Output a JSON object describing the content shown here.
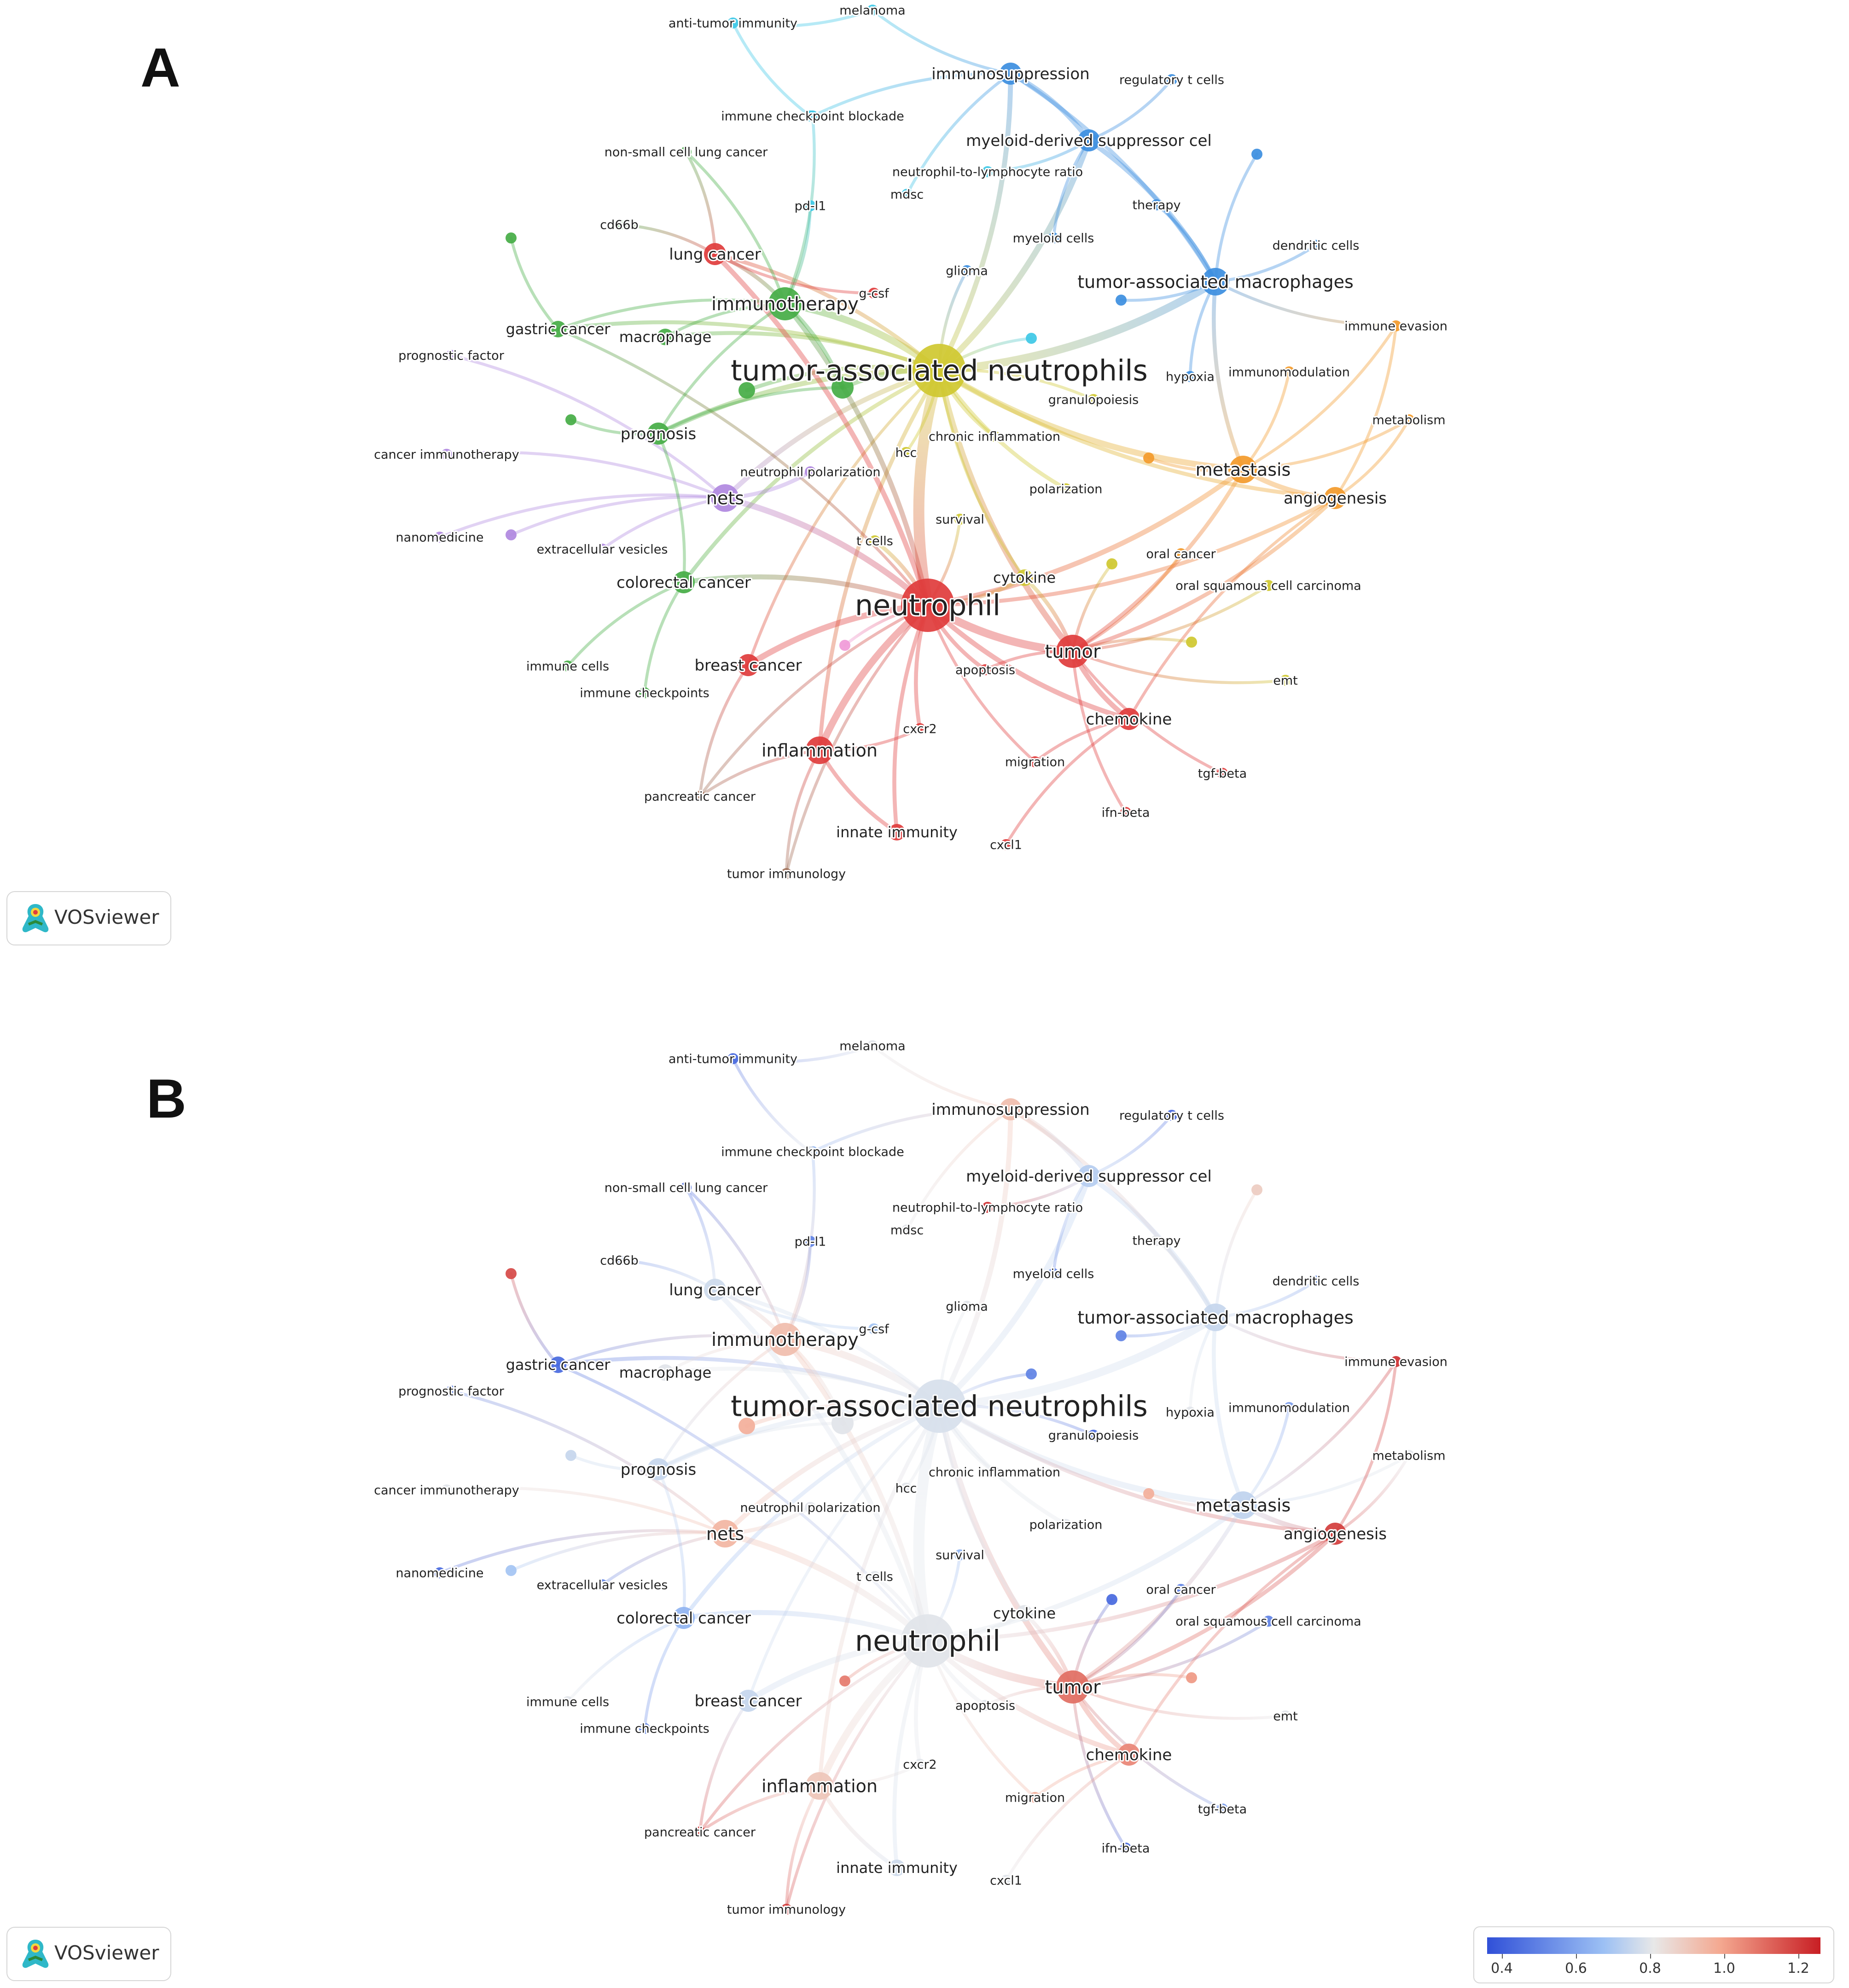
{
  "panels": [
    {
      "letter": "A",
      "mode": "cluster"
    },
    {
      "letter": "B",
      "mode": "overlay"
    }
  ],
  "logo": {
    "text": "VOSviewer",
    "icon": "vosviewer-logo-icon"
  },
  "colorbar": {
    "ticks": [
      "0.4",
      "0.6",
      "0.8",
      "1.0",
      "1.2"
    ],
    "min": 0.35,
    "max": 1.25,
    "colors": [
      "#3050d8",
      "#9cc0f4",
      "#e8e8e8",
      "#f4a890",
      "#c81e24"
    ]
  },
  "cluster_colors": {
    "red": "#e03c3c",
    "green": "#45ad45",
    "blue": "#3c8ee0",
    "yellow": "#cfc830",
    "purple": "#b088e0",
    "orange": "#f39a2a",
    "cyan": "#3ec8e6",
    "pink": "#f09ad8",
    "brown": "#a07058"
  },
  "nodes": [
    {
      "id": "tan",
      "label": "tumor-associated neutrophils",
      "cluster": "yellow",
      "weight": 10,
      "overlay": 0.75
    },
    {
      "id": "neu",
      "label": "neutrophil",
      "cluster": "red",
      "weight": 10,
      "overlay": 0.78
    },
    {
      "id": "imt",
      "label": "immunotherapy",
      "cluster": "green",
      "weight": 6,
      "overlay": 0.95
    },
    {
      "id": "tum",
      "label": "tumor",
      "cluster": "red",
      "weight": 6,
      "overlay": 1.12
    },
    {
      "id": "met",
      "label": "metastasis",
      "cluster": "orange",
      "weight": 5,
      "overlay": 0.68
    },
    {
      "id": "tam",
      "label": "tumor-associated macrophages",
      "cluster": "blue",
      "weight": 5,
      "overlay": 0.7
    },
    {
      "id": "mds",
      "label": "myeloid-derived suppressor cel",
      "cluster": "blue",
      "weight": 4,
      "overlay": 0.65
    },
    {
      "id": "ims",
      "label": "immunosuppression",
      "cluster": "blue",
      "weight": 4,
      "overlay": 0.95
    },
    {
      "id": "nets",
      "label": "nets",
      "cluster": "purple",
      "weight": 5,
      "overlay": 0.98
    },
    {
      "id": "prog",
      "label": "prognosis",
      "cluster": "green",
      "weight": 4,
      "overlay": 0.7
    },
    {
      "id": "crc",
      "label": "colorectal cancer",
      "cluster": "green",
      "weight": 4,
      "overlay": 0.55
    },
    {
      "id": "brc",
      "label": "breast cancer",
      "cluster": "red",
      "weight": 4,
      "overlay": 0.7
    },
    {
      "id": "inf",
      "label": "inflammation",
      "cluster": "red",
      "weight": 5,
      "overlay": 0.92
    },
    {
      "id": "lc",
      "label": "lung cancer",
      "cluster": "red",
      "weight": 4,
      "overlay": 0.72
    },
    {
      "id": "gc",
      "label": "gastric cancer",
      "cluster": "green",
      "weight": 3,
      "overlay": 0.4
    },
    {
      "id": "ang",
      "label": "angiogenesis",
      "cluster": "orange",
      "weight": 4,
      "overlay": 1.2
    },
    {
      "id": "chm",
      "label": "chemokine",
      "cluster": "red",
      "weight": 4,
      "overlay": 1.08
    },
    {
      "id": "cyt",
      "label": "cytokine",
      "cluster": "yellow",
      "weight": 3,
      "overlay": 0.78
    },
    {
      "id": "mac",
      "label": "macrophage",
      "cluster": "green",
      "weight": 3,
      "overlay": 0.78
    },
    {
      "id": "pol",
      "label": "polarization",
      "cluster": "yellow",
      "weight": 2,
      "overlay": 0.78
    },
    {
      "id": "ci",
      "label": "chronic inflammation",
      "cluster": "yellow",
      "weight": 2,
      "overlay": 0.78
    },
    {
      "id": "np",
      "label": "neutrophil polarization",
      "cluster": "purple",
      "weight": 2,
      "overlay": 0.78
    },
    {
      "id": "hcc",
      "label": "hcc",
      "cluster": "yellow",
      "weight": 2,
      "overlay": 0.78
    },
    {
      "id": "sur",
      "label": "survival",
      "cluster": "yellow",
      "weight": 2,
      "overlay": 0.55
    },
    {
      "id": "tc",
      "label": "t cells",
      "cluster": "yellow",
      "weight": 2,
      "overlay": 0.78
    },
    {
      "id": "apo",
      "label": "apoptosis",
      "cluster": "red",
      "weight": 2,
      "overlay": 0.78
    },
    {
      "id": "cxcr2",
      "label": "cxcr2",
      "cluster": "red",
      "weight": 2,
      "overlay": 0.78
    },
    {
      "id": "ii",
      "label": "innate immunity",
      "cluster": "red",
      "weight": 3,
      "overlay": 0.72
    },
    {
      "id": "cxcl1",
      "label": "cxcl1",
      "cluster": "red",
      "weight": 2,
      "overlay": 0.78
    },
    {
      "id": "mig",
      "label": "migration",
      "cluster": "red",
      "weight": 2,
      "overlay": 1.0
    },
    {
      "id": "ifnb",
      "label": "ifn-beta",
      "cluster": "red",
      "weight": 2,
      "overlay": 0.4
    },
    {
      "id": "tgfb",
      "label": "tgf-beta",
      "cluster": "red",
      "weight": 2,
      "overlay": 0.5
    },
    {
      "id": "emt",
      "label": "emt",
      "cluster": "yellow",
      "weight": 2,
      "overlay": 0.78
    },
    {
      "id": "osc",
      "label": "oral squamous cell carcinoma",
      "cluster": "yellow",
      "weight": 2,
      "overlay": 0.45
    },
    {
      "id": "oc",
      "label": "oral cancer",
      "cluster": "orange",
      "weight": 2,
      "overlay": 0.45
    },
    {
      "id": "imev",
      "label": "immune evasion",
      "cluster": "orange",
      "weight": 2,
      "overlay": 1.22
    },
    {
      "id": "immo",
      "label": "immunomodulation",
      "cluster": "orange",
      "weight": 2,
      "overlay": 0.5
    },
    {
      "id": "metb",
      "label": "metabolism",
      "cluster": "orange",
      "weight": 2,
      "overlay": 0.78
    },
    {
      "id": "hyp",
      "label": "hypoxia",
      "cluster": "blue",
      "weight": 2,
      "overlay": 0.78
    },
    {
      "id": "gran",
      "label": "granulopoiesis",
      "cluster": "yellow",
      "weight": 2,
      "overlay": 0.4
    },
    {
      "id": "ther",
      "label": "therapy",
      "cluster": "blue",
      "weight": 2,
      "overlay": 0.78
    },
    {
      "id": "dc",
      "label": "dendritic cells",
      "cluster": "blue",
      "weight": 2,
      "overlay": 0.5
    },
    {
      "id": "rtc",
      "label": "regulatory t cells",
      "cluster": "blue",
      "weight": 2,
      "overlay": 0.4
    },
    {
      "id": "myc",
      "label": "myeloid cells",
      "cluster": "blue",
      "weight": 2,
      "overlay": 0.45
    },
    {
      "id": "gli",
      "label": "glioma",
      "cluster": "blue",
      "weight": 2,
      "overlay": 0.78
    },
    {
      "id": "gcsf",
      "label": "g-csf",
      "cluster": "red",
      "weight": 2,
      "overlay": 0.6
    },
    {
      "id": "mdsc",
      "label": "mdsc",
      "cluster": "cyan",
      "weight": 2,
      "overlay": 0.78
    },
    {
      "id": "nlr",
      "label": "neutrophil-to-lymphocyte ratio",
      "cluster": "cyan",
      "weight": 2,
      "overlay": 1.22
    },
    {
      "id": "pdl1",
      "label": "pd-l1",
      "cluster": "cyan",
      "weight": 2,
      "overlay": 0.45
    },
    {
      "id": "icb",
      "label": "immune checkpoint blockade",
      "cluster": "cyan",
      "weight": 2,
      "overlay": 0.55
    },
    {
      "id": "mel",
      "label": "melanoma",
      "cluster": "cyan",
      "weight": 2,
      "overlay": 0.78
    },
    {
      "id": "ati",
      "label": "anti-tumor immunity",
      "cluster": "cyan",
      "weight": 2,
      "overlay": 0.4
    },
    {
      "id": "nsclc",
      "label": "non-small cell lung cancer",
      "cluster": "green",
      "weight": 2,
      "overlay": 0.4
    },
    {
      "id": "cd66",
      "label": "cd66b",
      "cluster": "green",
      "weight": 2,
      "overlay": 0.45
    },
    {
      "id": "pf",
      "label": "prognostic factor",
      "cluster": "purple",
      "weight": 2,
      "overlay": 0.45
    },
    {
      "id": "cim",
      "label": "cancer immunotherapy",
      "cluster": "purple",
      "weight": 2,
      "overlay": 0.78
    },
    {
      "id": "nano",
      "label": "nanomedicine",
      "cluster": "purple",
      "weight": 2,
      "overlay": 0.4
    },
    {
      "id": "ev",
      "label": "extracellular vesicles",
      "cluster": "purple",
      "weight": 2,
      "overlay": 0.45
    },
    {
      "id": "ic",
      "label": "immune cells",
      "cluster": "green",
      "weight": 2,
      "overlay": 0.78
    },
    {
      "id": "ick",
      "label": "immune checkpoints",
      "cluster": "green",
      "weight": 2,
      "overlay": 0.45
    },
    {
      "id": "pc",
      "label": "pancreatic cancer",
      "cluster": "brown",
      "weight": 2,
      "overlay": 1.2
    },
    {
      "id": "ti",
      "label": "tumor immunology",
      "cluster": "brown",
      "weight": 2,
      "overlay": 1.2
    },
    {
      "id": "u1",
      "label": "",
      "cluster": "green",
      "weight": 4,
      "overlay": 0.78
    },
    {
      "id": "u2",
      "label": "",
      "cluster": "green",
      "weight": 3,
      "overlay": 1.0
    },
    {
      "id": "u3",
      "label": "",
      "cluster": "green",
      "weight": 2,
      "overlay": 1.18
    },
    {
      "id": "u4",
      "label": "",
      "cluster": "green",
      "weight": 2,
      "overlay": 0.7
    },
    {
      "id": "u5",
      "label": "",
      "cluster": "purple",
      "weight": 2,
      "overlay": 0.6
    },
    {
      "id": "u6",
      "label": "",
      "cluster": "pink",
      "weight": 2,
      "overlay": 1.1
    },
    {
      "id": "u7",
      "label": "",
      "cluster": "cyan",
      "weight": 2,
      "overlay": 0.45
    },
    {
      "id": "u8",
      "label": "",
      "cluster": "blue",
      "weight": 2,
      "overlay": 0.45
    },
    {
      "id": "u9",
      "label": "",
      "cluster": "blue",
      "weight": 2,
      "overlay": 0.9
    },
    {
      "id": "u10",
      "label": "",
      "cluster": "orange",
      "weight": 2,
      "overlay": 1.0
    },
    {
      "id": "u11",
      "label": "",
      "cluster": "yellow",
      "weight": 2,
      "overlay": 0.4
    },
    {
      "id": "u12",
      "label": "",
      "cluster": "yellow",
      "weight": 2,
      "overlay": 1.05
    },
    {
      "id": "u13",
      "label": "",
      "cluster": "cyan",
      "weight": 2,
      "overlay": 0.78
    }
  ],
  "edges": [
    [
      "tan",
      "neu",
      10
    ],
    [
      "tan",
      "imt",
      6
    ],
    [
      "tan",
      "tam",
      7
    ],
    [
      "tan",
      "met",
      5
    ],
    [
      "tan",
      "tum",
      5
    ],
    [
      "tan",
      "mds",
      5
    ],
    [
      "tan",
      "ims",
      4
    ],
    [
      "tan",
      "nets",
      4
    ],
    [
      "tan",
      "prog",
      4
    ],
    [
      "tan",
      "crc",
      3
    ],
    [
      "tan",
      "lc",
      3
    ],
    [
      "tan",
      "gc",
      3
    ],
    [
      "tan",
      "ang",
      3
    ],
    [
      "tan",
      "mac",
      3
    ],
    [
      "tan",
      "pol",
      3
    ],
    [
      "tan",
      "ci",
      3
    ],
    [
      "tan",
      "cyt",
      2
    ],
    [
      "tan",
      "inf",
      3
    ],
    [
      "tan",
      "brc",
      2
    ],
    [
      "tan",
      "u1",
      4
    ],
    [
      "tan",
      "u2",
      3
    ],
    [
      "neu",
      "tum",
      7
    ],
    [
      "neu",
      "inf",
      6
    ],
    [
      "neu",
      "brc",
      5
    ],
    [
      "neu",
      "nets",
      5
    ],
    [
      "neu",
      "crc",
      4
    ],
    [
      "neu",
      "chm",
      4
    ],
    [
      "neu",
      "lc",
      4
    ],
    [
      "neu",
      "imt",
      4
    ],
    [
      "neu",
      "met",
      4
    ],
    [
      "neu",
      "cxcr2",
      3
    ],
    [
      "neu",
      "ii",
      3
    ],
    [
      "neu",
      "apo",
      3
    ],
    [
      "neu",
      "mig",
      2
    ],
    [
      "neu",
      "cyt",
      3
    ],
    [
      "neu",
      "tc",
      3
    ],
    [
      "neu",
      "sur",
      2
    ],
    [
      "neu",
      "u6",
      2
    ],
    [
      "neu",
      "gc",
      2
    ],
    [
      "neu",
      "ang",
      3
    ],
    [
      "neu",
      "pc",
      2
    ],
    [
      "neu",
      "ti",
      2
    ],
    [
      "imt",
      "lc",
      3
    ],
    [
      "imt",
      "mac",
      2
    ],
    [
      "imt",
      "prog",
      2
    ],
    [
      "imt",
      "nsclc",
      2
    ],
    [
      "imt",
      "pdl1",
      2
    ],
    [
      "imt",
      "icb",
      2
    ],
    [
      "imt",
      "gc",
      2
    ],
    [
      "tam",
      "mds",
      4
    ],
    [
      "tam",
      "ims",
      3
    ],
    [
      "tam",
      "met",
      3
    ],
    [
      "tam",
      "ther",
      2
    ],
    [
      "tam",
      "dc",
      2
    ],
    [
      "tam",
      "hyp",
      2
    ],
    [
      "tam",
      "imev",
      2
    ],
    [
      "mds",
      "ims",
      4
    ],
    [
      "mds",
      "myc",
      2
    ],
    [
      "mds",
      "rtc",
      2
    ],
    [
      "ims",
      "icb",
      2
    ],
    [
      "ims",
      "mdsc",
      2
    ],
    [
      "tum",
      "chm",
      4
    ],
    [
      "tum",
      "met",
      3
    ],
    [
      "tum",
      "ang",
      3
    ],
    [
      "tum",
      "cyt",
      3
    ],
    [
      "tum",
      "ifnb",
      2
    ],
    [
      "tum",
      "tgfb",
      2
    ],
    [
      "tum",
      "emt",
      2
    ],
    [
      "tum",
      "oc",
      2
    ],
    [
      "tum",
      "osc",
      2
    ],
    [
      "tum",
      "apo",
      2
    ],
    [
      "met",
      "ang",
      4
    ],
    [
      "met",
      "imev",
      2
    ],
    [
      "met",
      "metb",
      2
    ],
    [
      "met",
      "immo",
      2
    ],
    [
      "ang",
      "chm",
      2
    ],
    [
      "ang",
      "imev",
      2
    ],
    [
      "ang",
      "metb",
      2
    ],
    [
      "nets",
      "np",
      3
    ],
    [
      "nets",
      "cim",
      2
    ],
    [
      "nets",
      "pf",
      2
    ],
    [
      "nets",
      "nano",
      2
    ],
    [
      "nets",
      "ev",
      2
    ],
    [
      "nets",
      "u5",
      2
    ],
    [
      "crc",
      "ic",
      2
    ],
    [
      "crc",
      "ick",
      2
    ],
    [
      "crc",
      "prog",
      2
    ],
    [
      "inf",
      "ii",
      3
    ],
    [
      "inf",
      "cxcr2",
      2
    ],
    [
      "inf",
      "pc",
      2
    ],
    [
      "inf",
      "ti",
      2
    ],
    [
      "brc",
      "pc",
      2
    ],
    [
      "lc",
      "gcsf",
      2
    ],
    [
      "lc",
      "cd66",
      2
    ],
    [
      "lc",
      "nsclc",
      2
    ],
    [
      "ati",
      "mel",
      2
    ],
    [
      "ati",
      "u13",
      2
    ],
    [
      "mel",
      "ims",
      2
    ],
    [
      "u1",
      "imt",
      3
    ],
    [
      "u1",
      "prog",
      2
    ],
    [
      "u3",
      "gc",
      2
    ],
    [
      "u4",
      "prog",
      2
    ],
    [
      "u7",
      "tan",
      2
    ],
    [
      "u8",
      "tam",
      2
    ],
    [
      "u9",
      "tam",
      2
    ],
    [
      "u10",
      "met",
      2
    ],
    [
      "u11",
      "tum",
      2
    ],
    [
      "u12",
      "tum",
      2
    ],
    [
      "chm",
      "mig",
      2
    ],
    [
      "chm",
      "cxcl1",
      2
    ],
    [
      "gran",
      "tan",
      2
    ],
    [
      "gli",
      "tan",
      2
    ],
    [
      "nlr",
      "mds",
      2
    ],
    [
      "hcc",
      "tan",
      2
    ]
  ]
}
